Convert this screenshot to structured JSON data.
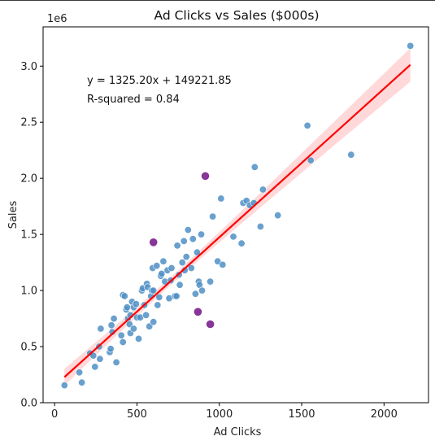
{
  "chart_data": {
    "type": "scatter",
    "title": "Ad Clicks vs Sales ($000s)",
    "xlabel": "Ad Clicks",
    "ylabel": "Sales",
    "y_offset_label": "1e6",
    "xlim": [
      -70,
      2270
    ],
    "ylim": [
      0,
      3350000
    ],
    "x_ticks": [
      0,
      500,
      1000,
      1500,
      2000
    ],
    "y_ticks": [
      0.0,
      0.5,
      1.0,
      1.5,
      2.0,
      2.5,
      3.0
    ],
    "y_tick_labels": [
      "0.0",
      "0.5",
      "1.0",
      "1.5",
      "2.0",
      "2.5",
      "3.0"
    ],
    "grid": false,
    "annotations": [
      "y = 1325.20x + 149221.85",
      "R-squared = 0.84"
    ],
    "fit_line": {
      "slope": 1325.2,
      "intercept": 149221.85,
      "x_range": [
        60,
        2160
      ]
    },
    "colors": {
      "points": "#4f8fc4",
      "outliers": "#7a1f8c",
      "fit": "#ff0000",
      "band": "#ffc0c0"
    },
    "points": [
      {
        "x": 60,
        "y": 155000
      },
      {
        "x": 150,
        "y": 270000
      },
      {
        "x": 165,
        "y": 180000
      },
      {
        "x": 215,
        "y": 440000
      },
      {
        "x": 235,
        "y": 420000
      },
      {
        "x": 245,
        "y": 320000
      },
      {
        "x": 270,
        "y": 500000
      },
      {
        "x": 275,
        "y": 390000
      },
      {
        "x": 280,
        "y": 660000
      },
      {
        "x": 335,
        "y": 450000
      },
      {
        "x": 340,
        "y": 480000
      },
      {
        "x": 345,
        "y": 690000
      },
      {
        "x": 350,
        "y": 630000
      },
      {
        "x": 360,
        "y": 750000
      },
      {
        "x": 375,
        "y": 360000
      },
      {
        "x": 405,
        "y": 600000
      },
      {
        "x": 415,
        "y": 540000
      },
      {
        "x": 415,
        "y": 960000
      },
      {
        "x": 425,
        "y": 950000
      },
      {
        "x": 435,
        "y": 830000
      },
      {
        "x": 440,
        "y": 850000
      },
      {
        "x": 445,
        "y": 750000
      },
      {
        "x": 455,
        "y": 700000
      },
      {
        "x": 460,
        "y": 780000
      },
      {
        "x": 460,
        "y": 620000
      },
      {
        "x": 470,
        "y": 900000
      },
      {
        "x": 480,
        "y": 850000
      },
      {
        "x": 480,
        "y": 660000
      },
      {
        "x": 495,
        "y": 880000
      },
      {
        "x": 500,
        "y": 760000
      },
      {
        "x": 510,
        "y": 570000
      },
      {
        "x": 520,
        "y": 760000
      },
      {
        "x": 530,
        "y": 1000000
      },
      {
        "x": 535,
        "y": 1020000
      },
      {
        "x": 545,
        "y": 870000
      },
      {
        "x": 555,
        "y": 780000
      },
      {
        "x": 560,
        "y": 1060000
      },
      {
        "x": 565,
        "y": 1030000
      },
      {
        "x": 575,
        "y": 680000
      },
      {
        "x": 585,
        "y": 950000
      },
      {
        "x": 590,
        "y": 1000000
      },
      {
        "x": 595,
        "y": 1200000
      },
      {
        "x": 600,
        "y": 720000
      },
      {
        "x": 600,
        "y": 1000000
      },
      {
        "x": 620,
        "y": 1220000
      },
      {
        "x": 625,
        "y": 870000
      },
      {
        "x": 635,
        "y": 940000
      },
      {
        "x": 645,
        "y": 1130000
      },
      {
        "x": 650,
        "y": 1150000
      },
      {
        "x": 660,
        "y": 1260000
      },
      {
        "x": 670,
        "y": 1080000
      },
      {
        "x": 685,
        "y": 1180000
      },
      {
        "x": 695,
        "y": 930000
      },
      {
        "x": 705,
        "y": 1090000
      },
      {
        "x": 710,
        "y": 1200000
      },
      {
        "x": 730,
        "y": 950000
      },
      {
        "x": 740,
        "y": 950000
      },
      {
        "x": 745,
        "y": 1400000
      },
      {
        "x": 755,
        "y": 1140000
      },
      {
        "x": 760,
        "y": 1050000
      },
      {
        "x": 775,
        "y": 1250000
      },
      {
        "x": 785,
        "y": 1440000
      },
      {
        "x": 790,
        "y": 1180000
      },
      {
        "x": 800,
        "y": 1300000
      },
      {
        "x": 810,
        "y": 1540000
      },
      {
        "x": 830,
        "y": 1200000
      },
      {
        "x": 840,
        "y": 1460000
      },
      {
        "x": 855,
        "y": 970000
      },
      {
        "x": 865,
        "y": 1340000
      },
      {
        "x": 875,
        "y": 1080000
      },
      {
        "x": 880,
        "y": 1050000
      },
      {
        "x": 890,
        "y": 1500000
      },
      {
        "x": 895,
        "y": 1000000
      },
      {
        "x": 945,
        "y": 1080000
      },
      {
        "x": 960,
        "y": 1660000
      },
      {
        "x": 990,
        "y": 1260000
      },
      {
        "x": 1010,
        "y": 1820000
      },
      {
        "x": 1020,
        "y": 1230000
      },
      {
        "x": 1085,
        "y": 1480000
      },
      {
        "x": 1135,
        "y": 1420000
      },
      {
        "x": 1145,
        "y": 1780000
      },
      {
        "x": 1165,
        "y": 1800000
      },
      {
        "x": 1185,
        "y": 1760000
      },
      {
        "x": 1210,
        "y": 1780000
      },
      {
        "x": 1215,
        "y": 2100000
      },
      {
        "x": 1250,
        "y": 1570000
      },
      {
        "x": 1265,
        "y": 1900000
      },
      {
        "x": 1355,
        "y": 1670000
      },
      {
        "x": 1535,
        "y": 2470000
      },
      {
        "x": 1555,
        "y": 2160000
      },
      {
        "x": 1800,
        "y": 2210000
      },
      {
        "x": 2160,
        "y": 3180000
      }
    ],
    "outliers": [
      {
        "x": 600,
        "y": 1430000
      },
      {
        "x": 915,
        "y": 2020000
      },
      {
        "x": 870,
        "y": 810000
      },
      {
        "x": 945,
        "y": 700000
      }
    ]
  }
}
